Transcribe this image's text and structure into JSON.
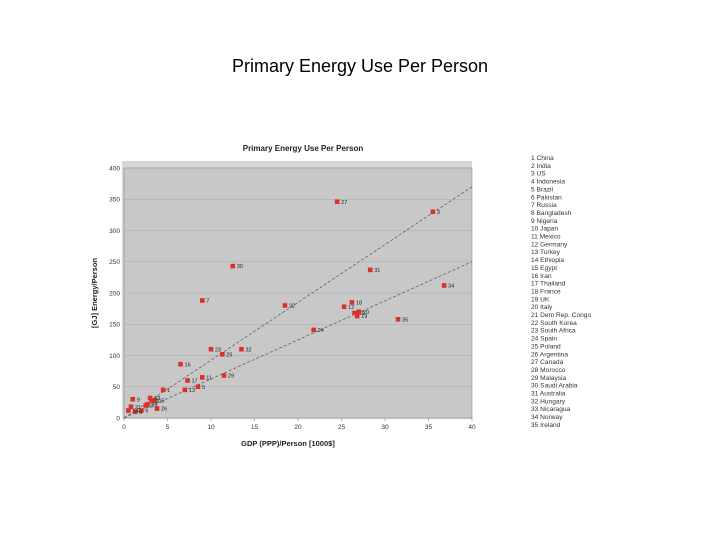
{
  "slide_title": "Primary Energy Use Per Person",
  "chart_data": {
    "type": "scatter",
    "title": "Primary Energy Use Per Person",
    "xlabel": "GDP (PPP)/Person [1000$]",
    "ylabel": "[GJ] Energy/Person",
    "xlim": [
      0,
      40
    ],
    "ylim": [
      0,
      400
    ],
    "xticks": [
      "0",
      "5",
      "10",
      "15",
      "20",
      "25",
      "30",
      "35",
      "40"
    ],
    "yticks": [
      "0",
      "50",
      "100",
      "150",
      "200",
      "250",
      "300",
      "350",
      "400"
    ],
    "grid": true,
    "legend_position": "right",
    "marker_color": "#d9322a",
    "plot_background": "#c8c8c8",
    "legend": [
      "1 China",
      "2 India",
      "3 US",
      "4 Indonesia",
      "5 Brazil",
      "6 Pakistan",
      "7 Russia",
      "8 Bangladesh",
      "9 Nigeria",
      "10 Japan",
      "11 Mexico",
      "12 Germany",
      "13 Turkey",
      "14 Ethiopia",
      "15 Egypt",
      "16 Iran",
      "17 Thailand",
      "18 France",
      "19 UK",
      "20 Italy",
      "21 Dem Rep. Congo",
      "22 South Korea",
      "23 South Africa",
      "24 Spain",
      "25 Poland",
      "26 Argentina",
      "27 Canada",
      "28 Morocco",
      "29 Malaysia",
      "30 Saudi Arabia",
      "31 Australia",
      "32 Hungary",
      "33 Nicaragua",
      "34 Norway",
      "35 Ireland"
    ],
    "points": [
      {
        "label": "1",
        "x": 4.5,
        "y": 45
      },
      {
        "label": "2",
        "x": 2.5,
        "y": 20
      },
      {
        "label": "3",
        "x": 35.5,
        "y": 330
      },
      {
        "label": "4",
        "x": 3.2,
        "y": 28
      },
      {
        "label": "5",
        "x": 8.5,
        "y": 50
      },
      {
        "label": "6",
        "x": 2.0,
        "y": 12
      },
      {
        "label": "7",
        "x": 9.0,
        "y": 188
      },
      {
        "label": "8",
        "x": 1.3,
        "y": 10
      },
      {
        "label": "9",
        "x": 1.0,
        "y": 30
      },
      {
        "label": "10",
        "x": 26.5,
        "y": 168
      },
      {
        "label": "11",
        "x": 9.0,
        "y": 65
      },
      {
        "label": "12",
        "x": 25.3,
        "y": 178
      },
      {
        "label": "13",
        "x": 7.0,
        "y": 45
      },
      {
        "label": "14",
        "x": 0.5,
        "y": 12
      },
      {
        "label": "15",
        "x": 3.5,
        "y": 28
      },
      {
        "label": "16",
        "x": 6.5,
        "y": 86
      },
      {
        "label": "17",
        "x": 7.3,
        "y": 60
      },
      {
        "label": "18",
        "x": 26.2,
        "y": 185
      },
      {
        "label": "19",
        "x": 26.8,
        "y": 163
      },
      {
        "label": "20",
        "x": 27.0,
        "y": 170
      },
      {
        "label": "21",
        "x": 0.8,
        "y": 18
      },
      {
        "label": "22",
        "x": 18.5,
        "y": 180
      },
      {
        "label": "23",
        "x": 10.0,
        "y": 110
      },
      {
        "label": "24",
        "x": 21.8,
        "y": 141
      },
      {
        "label": "25",
        "x": 11.3,
        "y": 102
      },
      {
        "label": "26",
        "x": 3.8,
        "y": 15
      },
      {
        "label": "27",
        "x": 24.5,
        "y": 346
      },
      {
        "label": "28",
        "x": 2.7,
        "y": 22
      },
      {
        "label": "29",
        "x": 11.5,
        "y": 68
      },
      {
        "label": "30",
        "x": 12.5,
        "y": 243
      },
      {
        "label": "31",
        "x": 28.3,
        "y": 237
      },
      {
        "label": "32",
        "x": 13.5,
        "y": 110
      },
      {
        "label": "33",
        "x": 3.0,
        "y": 32
      },
      {
        "label": "34",
        "x": 36.8,
        "y": 212
      },
      {
        "label": "35",
        "x": 31.5,
        "y": 158
      }
    ],
    "trend_lines": [
      {
        "x": [
          0,
          40
        ],
        "y": [
          0,
          370
        ]
      },
      {
        "x": [
          0,
          40
        ],
        "y": [
          0,
          250
        ]
      }
    ]
  }
}
